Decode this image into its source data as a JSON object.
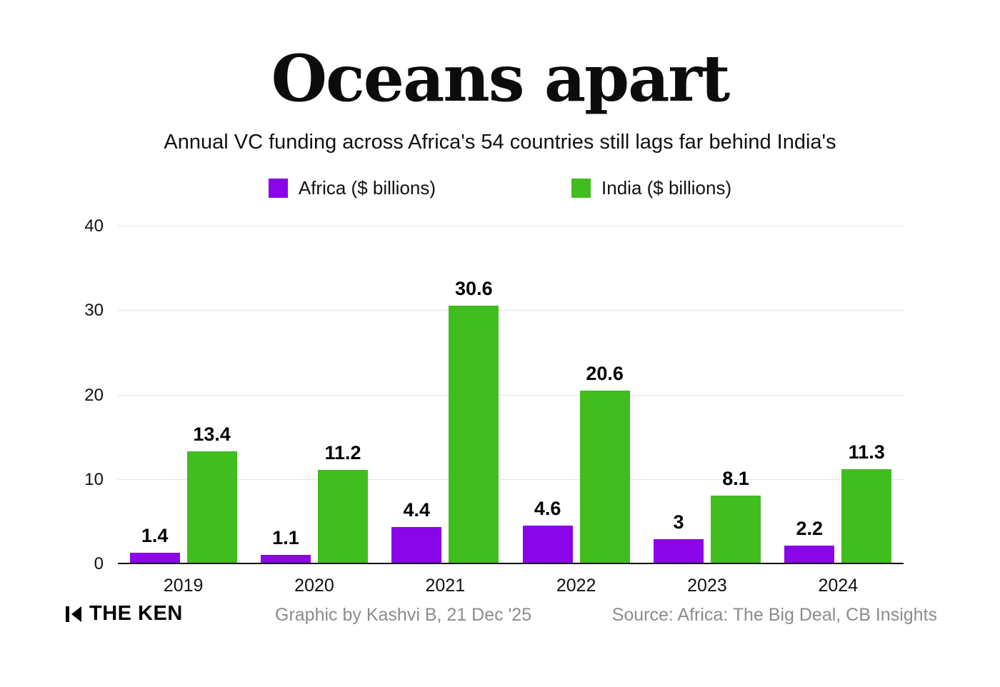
{
  "title": "Oceans apart",
  "subtitle": "Annual VC funding across Africa's 54 countries still lags far behind India's",
  "legend": [
    {
      "label": "Africa ($ billions)",
      "color": "#8A05E8"
    },
    {
      "label": "India ($ billions)",
      "color": "#41BD1F"
    }
  ],
  "chart_data": {
    "type": "bar",
    "title": "Oceans apart",
    "subtitle": "Annual VC funding across Africa's 54 countries still lags far behind India's",
    "categories": [
      "2019",
      "2020",
      "2021",
      "2022",
      "2023",
      "2024"
    ],
    "series": [
      {
        "name": "Africa ($ billions)",
        "color": "#8A05E8",
        "values": [
          1.4,
          1.1,
          4.4,
          4.6,
          3,
          2.2
        ]
      },
      {
        "name": "India ($ billions)",
        "color": "#41BD1F",
        "values": [
          13.4,
          11.2,
          30.6,
          20.6,
          8.1,
          11.3
        ]
      }
    ],
    "ylim": [
      0,
      40
    ],
    "yticks": [
      0,
      10,
      20,
      30,
      40
    ],
    "xlabel": "",
    "ylabel": "",
    "grid": true,
    "legend_position": "top",
    "value_labels": true
  },
  "footer": {
    "logo_text": "THE KEN",
    "credit": "Graphic by Kashvi B, 21 Dec '25",
    "source": "Source: Africa: The Big Deal, CB Insights"
  }
}
